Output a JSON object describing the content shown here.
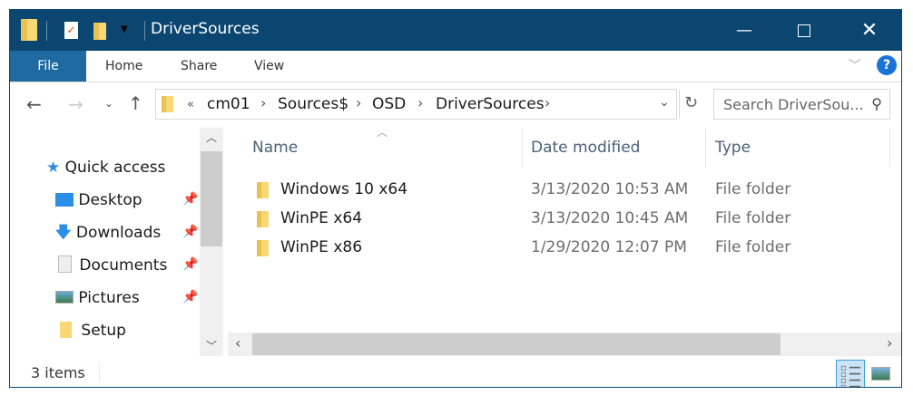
{
  "window": {
    "title": "DriverSources",
    "minimize_icon": "minimize-icon",
    "maximize_icon": "maximize-icon",
    "close_icon": "close-icon"
  },
  "ribbon": {
    "tabs": [
      "File",
      "Home",
      "Share",
      "View"
    ],
    "help": "?"
  },
  "address": {
    "back_icon": "arrow-left-icon",
    "forward_icon": "arrow-right-icon",
    "up_icon": "arrow-up-icon",
    "overflow": "«",
    "crumbs": [
      "cm01",
      "Sources$",
      "OSD",
      "DriverSources"
    ]
  },
  "search": {
    "placeholder": "Search DriverSou..."
  },
  "nav": {
    "items": [
      {
        "label": "Quick access",
        "icon": "star-icon"
      },
      {
        "label": "Desktop",
        "icon": "desktop-icon",
        "pinned": true
      },
      {
        "label": "Downloads",
        "icon": "download-icon",
        "pinned": true
      },
      {
        "label": "Documents",
        "icon": "documents-icon",
        "pinned": true
      },
      {
        "label": "Pictures",
        "icon": "pictures-icon",
        "pinned": true
      },
      {
        "label": "Setup",
        "icon": "folder-icon"
      }
    ]
  },
  "list": {
    "columns": [
      "Name",
      "Date modified",
      "Type"
    ],
    "rows": [
      {
        "name": "Windows 10 x64",
        "date": "3/13/2020 10:53 AM",
        "type": "File folder"
      },
      {
        "name": "WinPE x64",
        "date": "3/13/2020 10:45 AM",
        "type": "File folder"
      },
      {
        "name": "WinPE x86",
        "date": "1/29/2020 12:07 PM",
        "type": "File folder"
      }
    ]
  },
  "status": {
    "count": "3 items"
  },
  "colors": {
    "titlebar": "#0a4670",
    "file_tab": "#1f6aa0",
    "help": "#1a73d9"
  }
}
